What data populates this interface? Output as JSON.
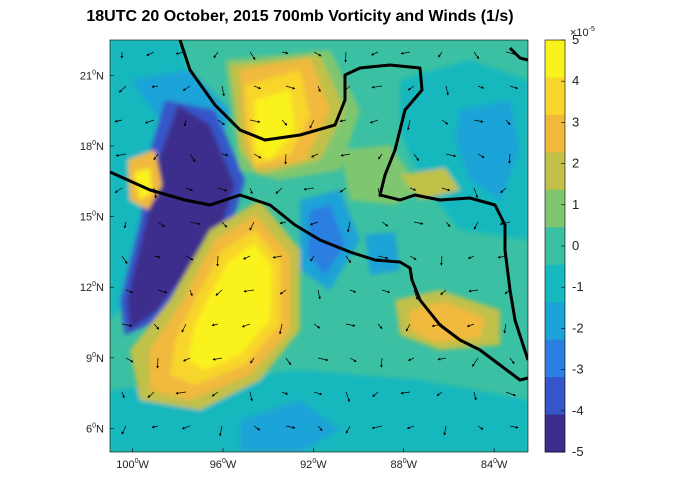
{
  "title": "18UTC 20 October, 2015 700mb Vorticity and Winds (1/s)",
  "colors": {
    "neg5": "#3e2d8d",
    "neg4": "#3556c9",
    "neg3": "#2b7fe0",
    "neg2": "#1ea3d7",
    "neg1": "#17b8be",
    "zero": "#3cc0a3",
    "pos1": "#7fc66f",
    "pos2": "#c1c048",
    "pos3": "#f1b93c",
    "pos4": "#f8d52a",
    "pos5": "#f9f21c",
    "coast": "#000000"
  },
  "chart_data": {
    "type": "heatmap",
    "title": "18UTC 20 October, 2015 700mb Vorticity and Winds (1/s)",
    "x_range_deg_west": [
      101,
      82.5
    ],
    "y_range_deg_north": [
      5,
      22.5
    ],
    "x_ticks": [
      {
        "value": 100,
        "deg": "100",
        "hem": "W"
      },
      {
        "value": 96,
        "deg": "96",
        "hem": "W"
      },
      {
        "value": 92,
        "deg": "92",
        "hem": "W"
      },
      {
        "value": 88,
        "deg": "88",
        "hem": "W"
      },
      {
        "value": 84,
        "deg": "84",
        "hem": "W"
      }
    ],
    "y_ticks": [
      {
        "value": 6,
        "deg": "6",
        "hem": "N"
      },
      {
        "value": 9,
        "deg": "9",
        "hem": "N"
      },
      {
        "value": 12,
        "deg": "12",
        "hem": "N"
      },
      {
        "value": 15,
        "deg": "15",
        "hem": "N"
      },
      {
        "value": 18,
        "deg": "18",
        "hem": "N"
      },
      {
        "value": 21,
        "deg": "21",
        "hem": "N"
      }
    ],
    "colorbar": {
      "range": [
        -5,
        5
      ],
      "ticks": [
        "5",
        "4",
        "3",
        "2",
        "1",
        "0",
        "-1",
        "-2",
        "-3",
        "-4",
        "-5"
      ],
      "exponent_base": "×10",
      "exponent_power": "-5"
    },
    "grid": false
  }
}
